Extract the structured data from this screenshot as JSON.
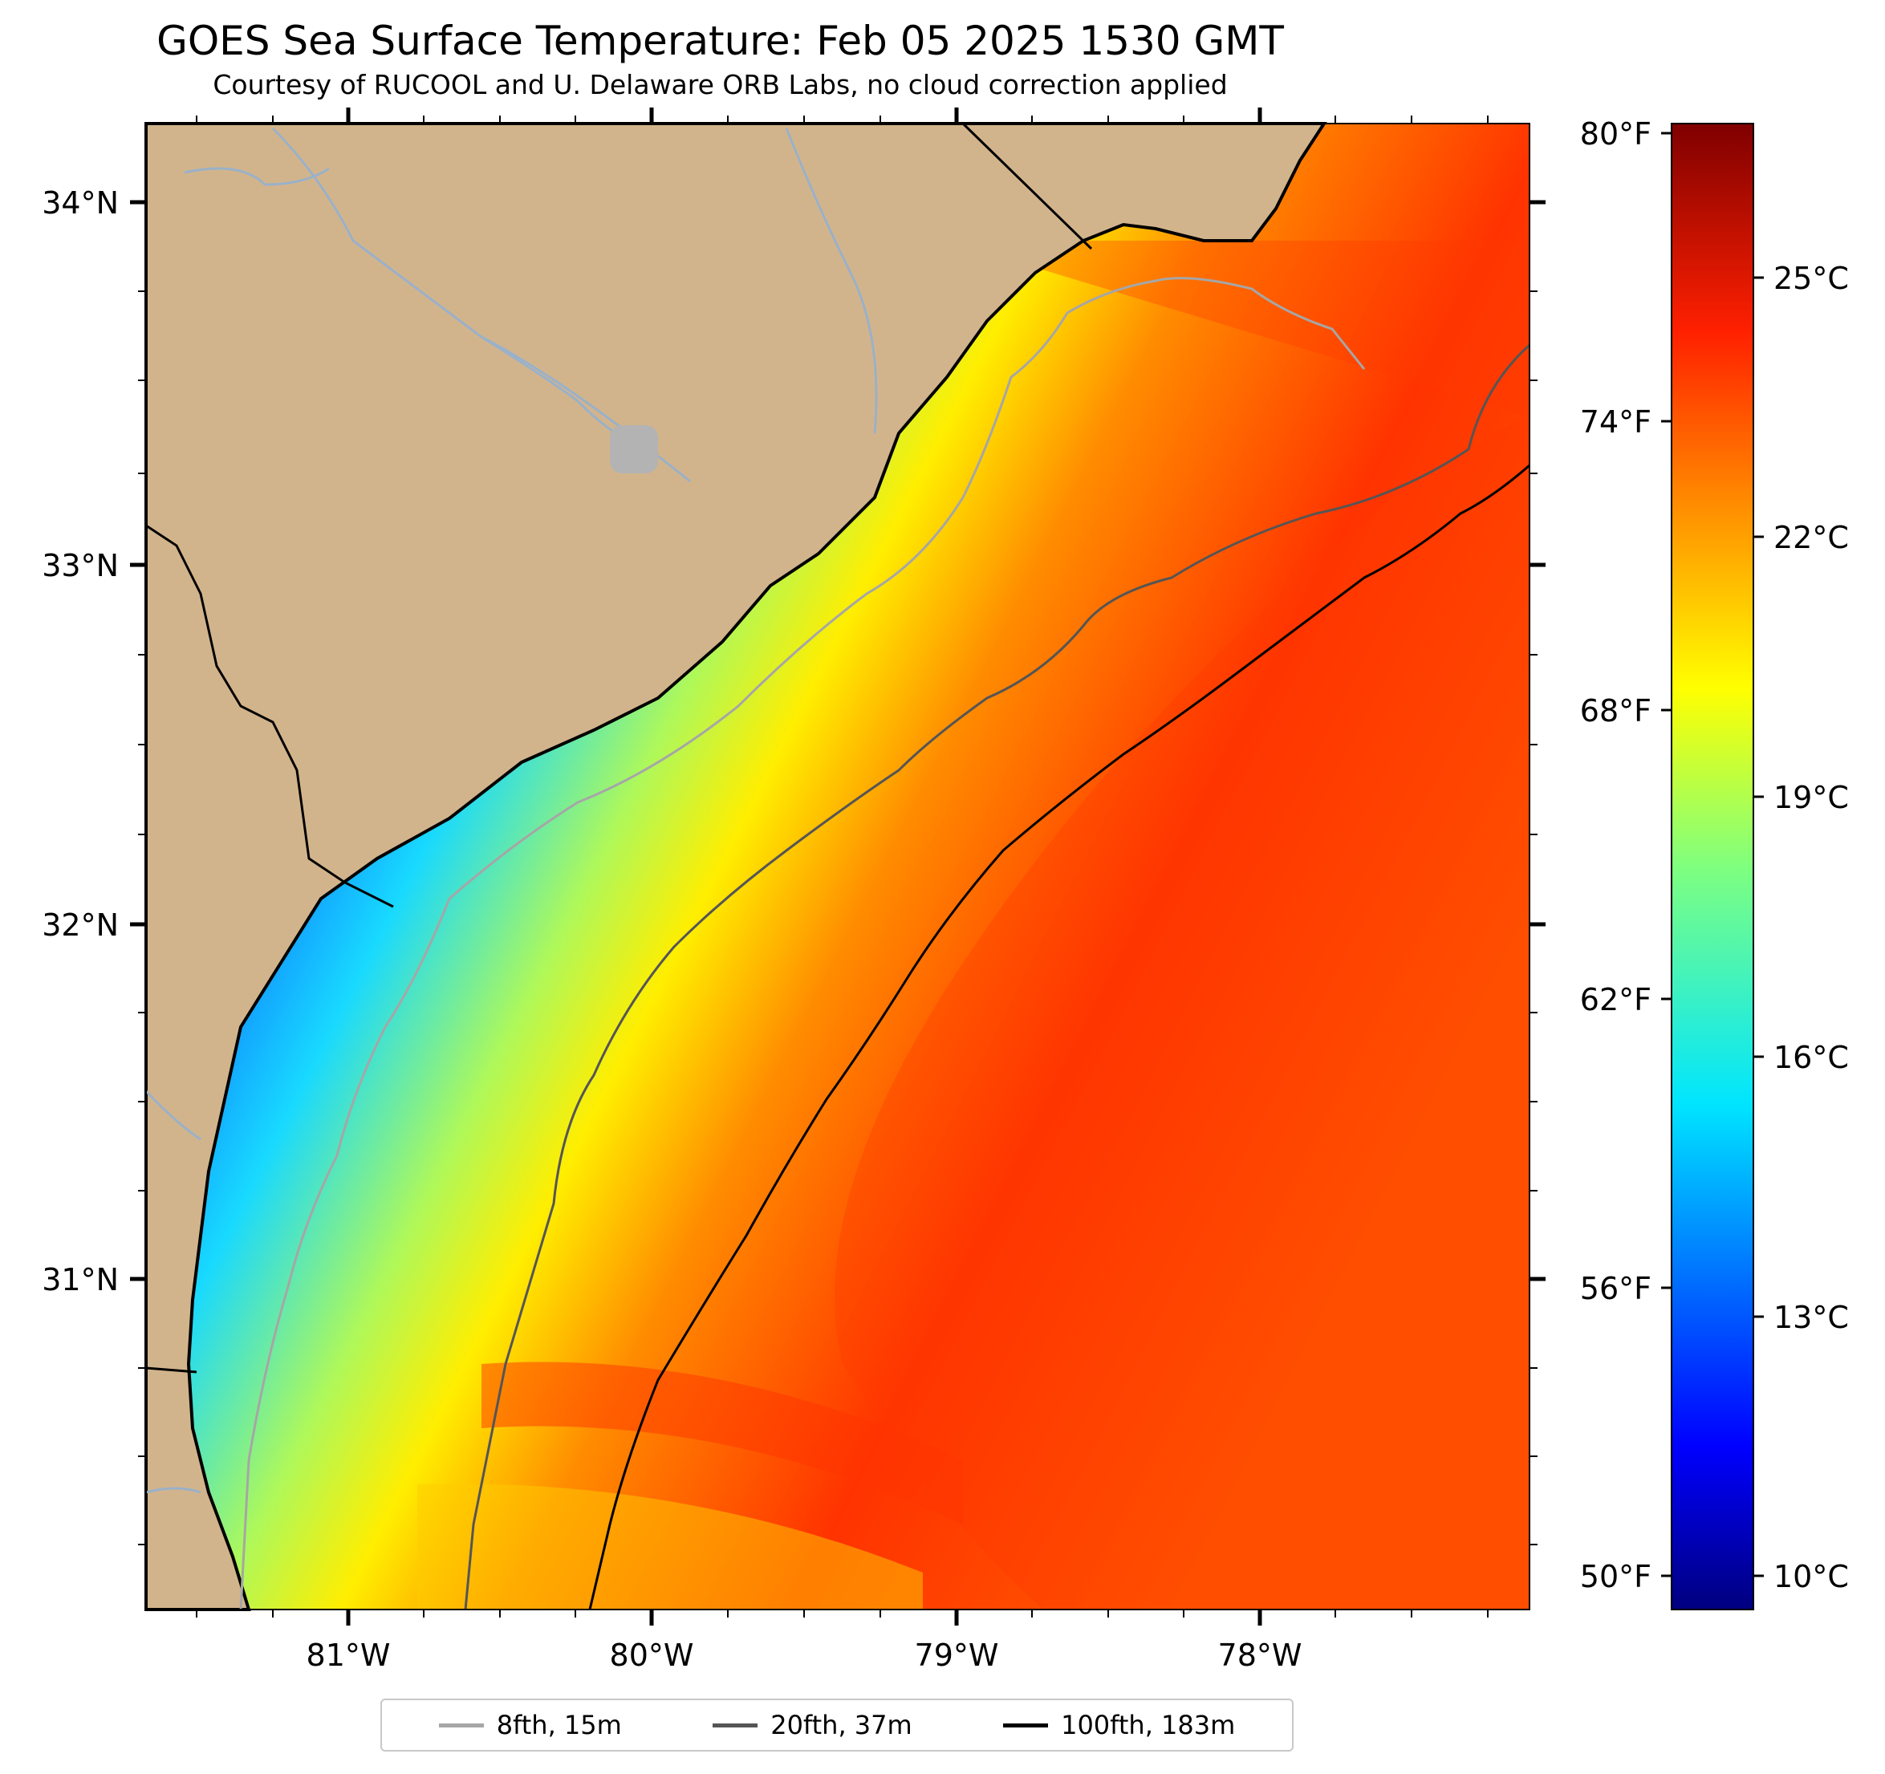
{
  "header": {
    "title": "GOES Sea Surface Temperature: Feb 05 2025 1530 GMT",
    "subtitle": "Courtesy of RUCOOL and U. Delaware ORB Labs, no cloud correction applied"
  },
  "axes": {
    "lat_ticks": [
      "34°N",
      "33°N",
      "32°N",
      "31°N"
    ],
    "lon_ticks": [
      "81°W",
      "80°W",
      "79°W",
      "78°W"
    ]
  },
  "colorbar": {
    "fahrenheit_ticks": [
      "80°F",
      "74°F",
      "68°F",
      "62°F",
      "56°F",
      "50°F"
    ],
    "celsius_ticks": [
      "25°C",
      "22°C",
      "19°C",
      "16°C",
      "13°C",
      "10°C"
    ],
    "colormap": "jet",
    "range_c": [
      9.5,
      27.3
    ]
  },
  "legend": {
    "items": [
      {
        "label": "8fth, 15m",
        "color": "#a6a6a6"
      },
      {
        "label": "20fth, 37m",
        "color": "#555555"
      },
      {
        "label": "100fth, 183m",
        "color": "#000000"
      }
    ]
  },
  "colors": {
    "land": "#d2b48c",
    "river": "#9ab1c9",
    "coast": "#000000"
  }
}
